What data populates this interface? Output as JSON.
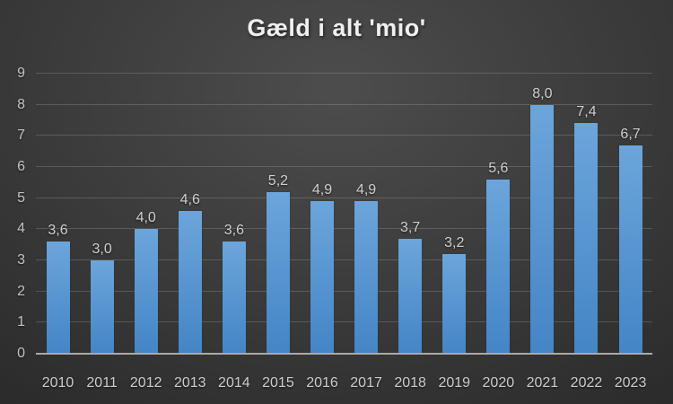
{
  "chart_data": {
    "type": "bar",
    "title": "Gæld i alt 'mio'",
    "categories": [
      "2010",
      "2011",
      "2012",
      "2013",
      "2014",
      "2015",
      "2016",
      "2017",
      "2018",
      "2019",
      "2020",
      "2021",
      "2022",
      "2023"
    ],
    "values": [
      3.6,
      3.0,
      4.0,
      4.6,
      3.6,
      5.2,
      4.9,
      4.9,
      3.7,
      3.2,
      5.6,
      8.0,
      7.4,
      6.7
    ],
    "value_labels": [
      "3,6",
      "3,0",
      "4,0",
      "4,6",
      "3,6",
      "5,2",
      "4,9",
      "4,9",
      "3,7",
      "3,2",
      "5,6",
      "8,0",
      "7,4",
      "6,7"
    ],
    "xlabel": "",
    "ylabel": "",
    "ylim": [
      0,
      9
    ],
    "yticks": [
      0,
      1,
      2,
      3,
      4,
      5,
      6,
      7,
      8,
      9
    ],
    "grid": true,
    "legend": false,
    "colors": {
      "bar_top": "#6ca5db",
      "bar_bottom": "#4485c6",
      "background_center": "#4d4d4d",
      "background_edge": "#262626",
      "gridline": "#5a5a5a",
      "axis_line": "#aaaaaa",
      "label_text": "#d0d0d0",
      "title_text": "#efefef"
    }
  }
}
